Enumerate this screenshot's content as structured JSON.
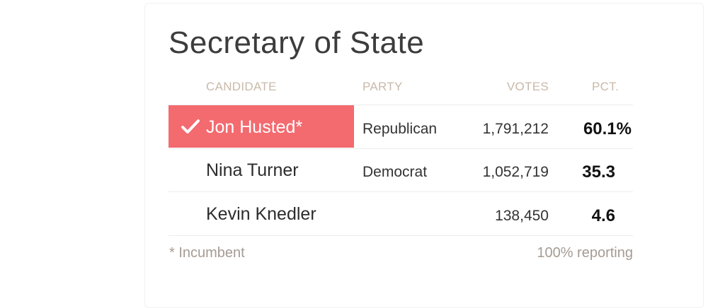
{
  "race": {
    "title": "Secretary of State",
    "headers": {
      "candidate": "CANDIDATE",
      "party": "PARTY",
      "votes": "VOTES",
      "pct": "PCT."
    },
    "rows": [
      {
        "candidate": "Jon Husted*",
        "party": "Republican",
        "votes": "1,791,212",
        "pct": "60.1%",
        "winner": true
      },
      {
        "candidate": "Nina Turner",
        "party": "Democrat",
        "votes": "1,052,719",
        "pct": "35.3",
        "winner": false
      },
      {
        "candidate": "Kevin Knedler",
        "party": "",
        "votes": "138,450",
        "pct": "4.6",
        "winner": false
      }
    ],
    "footnote": "* Incumbent",
    "reporting": "100% reporting"
  },
  "colors": {
    "winner_highlight": "#f36a6f",
    "header_text": "#c9b9a8",
    "footnote_text": "#a59b93"
  }
}
